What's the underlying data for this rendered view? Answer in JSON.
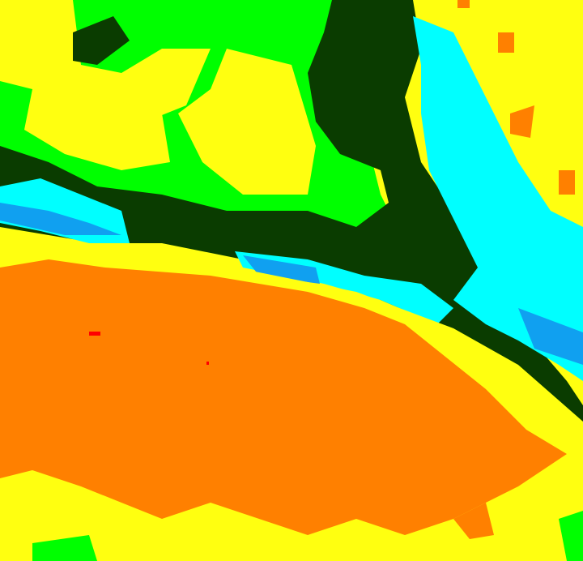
{
  "map": {
    "type": "classified-raster",
    "legend_colors": {
      "yellow": "#ffff10",
      "orange": "#ff8000",
      "green": "#00ff00",
      "dark_green": "#0a3c00",
      "cyan": "#00ffff",
      "blue": "#10a0f0",
      "red": "#ff0000"
    }
  }
}
